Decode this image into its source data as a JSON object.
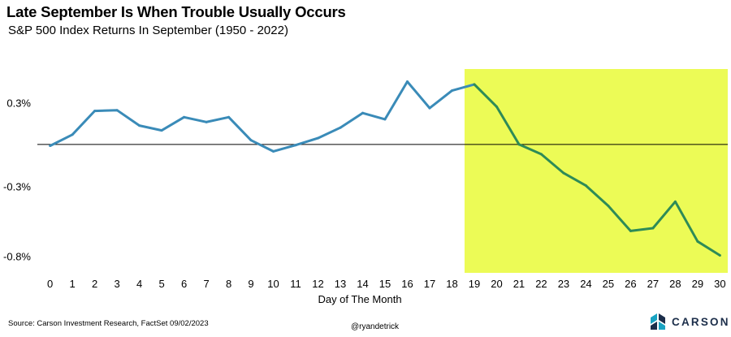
{
  "header": {
    "title": "Late September Is When Trouble Usually Occurs",
    "subtitle": "S&P 500 Index Returns In September (1950 - 2022)"
  },
  "footer": {
    "source": "Source: Carson Investment Research, FactSet 09/02/2023",
    "handle": "@ryandetrick",
    "brand": "CARSON"
  },
  "colors": {
    "line": "#3a8bb8",
    "highlight_line": "#2e8b57",
    "highlight_fill": "#ecfb56",
    "zero_line": "#000000",
    "brand_dark": "#1c2e4a",
    "brand_teal": "#19a3c2"
  },
  "chart_data": {
    "type": "line",
    "title": "Late September Is When Trouble Usually Occurs",
    "subtitle": "S&P 500 Index Returns In September (1950 - 2022)",
    "xlabel": "Day of The Month",
    "ylabel": "",
    "x": [
      0,
      1,
      2,
      3,
      4,
      5,
      6,
      7,
      8,
      9,
      10,
      11,
      12,
      13,
      14,
      15,
      16,
      17,
      18,
      19,
      20,
      21,
      22,
      23,
      24,
      25,
      26,
      27,
      28,
      29,
      30
    ],
    "series": [
      {
        "values": [
          -0.01,
          0.07,
          0.24,
          0.245,
          0.135,
          0.1,
          0.195,
          0.16,
          0.195,
          0.03,
          -0.05,
          -0.005,
          0.045,
          0.12,
          0.225,
          0.18,
          0.45,
          0.26,
          0.385,
          0.43,
          0.27,
          0.0,
          -0.07,
          -0.205,
          -0.295,
          -0.44,
          -0.62,
          -0.6,
          -0.41,
          -0.695,
          -0.795
        ]
      }
    ],
    "yticks": [
      0.3,
      -0.3,
      -0.8
    ],
    "ytick_labels": [
      "0.3%",
      "-0.3%",
      "-0.8%"
    ],
    "ylim": [
      -0.92,
      0.54
    ],
    "xlim": [
      -0.35,
      30.35
    ],
    "highlight_range": [
      19,
      30
    ],
    "zero_line": true,
    "grid": false,
    "legend": "none"
  }
}
